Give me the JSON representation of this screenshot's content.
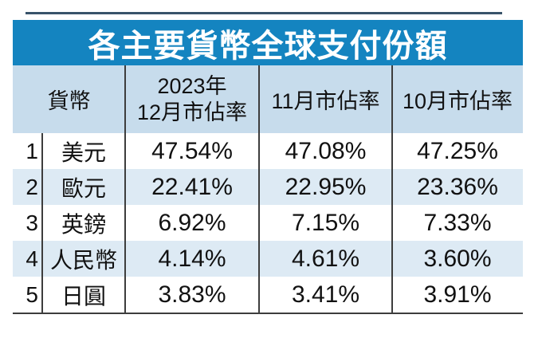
{
  "colors": {
    "title_bg": "#1484c0",
    "title_text": "#ffffff",
    "header_bg": "#c7dcec",
    "stripe_bg": "#ddeaf4",
    "row_bg": "#ffffff",
    "border_line": "#3d3d3d",
    "body_text": "#111111"
  },
  "table": {
    "title": "各主要貨幣全球支付份額",
    "header": {
      "currency": "貨幣",
      "dec_line1": "2023年",
      "dec_line2": "12月市佔率",
      "nov": "11月市佔率",
      "oct": "10月市佔率"
    },
    "rows": [
      {
        "rank": "1",
        "name": "美元",
        "dec": "47.54%",
        "nov": "47.08%",
        "oct": "47.25%"
      },
      {
        "rank": "2",
        "name": "歐元",
        "dec": "22.41%",
        "nov": "22.95%",
        "oct": "23.36%"
      },
      {
        "rank": "3",
        "name": "英鎊",
        "dec": "6.92%",
        "nov": "7.15%",
        "oct": "7.33%"
      },
      {
        "rank": "4",
        "name": "人民幣",
        "dec": "4.14%",
        "nov": "4.61%",
        "oct": "3.60%"
      },
      {
        "rank": "5",
        "name": "日圓",
        "dec": "3.83%",
        "nov": "3.41%",
        "oct": "3.91%"
      }
    ]
  },
  "chart_data": {
    "type": "table",
    "title": "各主要貨幣全球支付份額",
    "categories": [
      "美元",
      "歐元",
      "英鎊",
      "人民幣",
      "日圓"
    ],
    "ranks": [
      1,
      2,
      3,
      4,
      5
    ],
    "series": [
      {
        "name": "2023年12月市佔率",
        "values": [
          47.54,
          22.41,
          6.92,
          4.14,
          3.83
        ]
      },
      {
        "name": "11月市佔率",
        "values": [
          47.08,
          22.95,
          7.15,
          4.61,
          3.41
        ]
      },
      {
        "name": "10月市佔率",
        "values": [
          47.25,
          23.36,
          7.33,
          3.6,
          3.91
        ]
      }
    ],
    "unit": "%"
  }
}
